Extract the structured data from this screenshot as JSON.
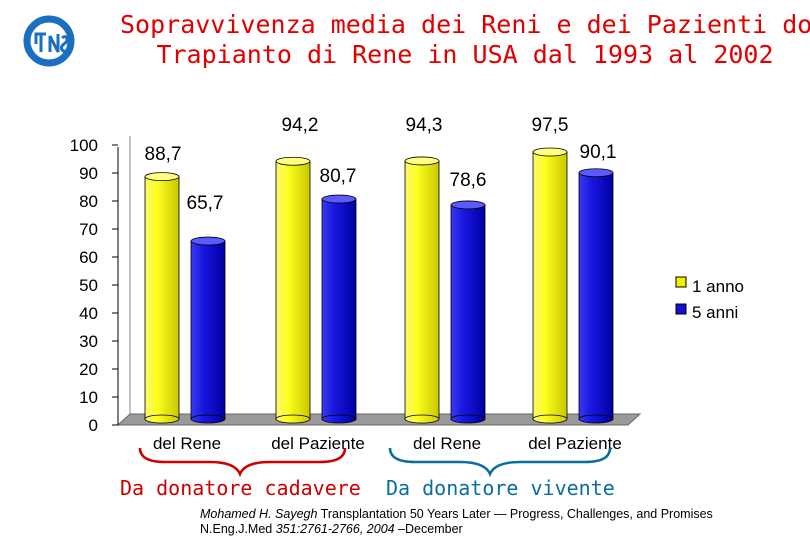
{
  "title": {
    "line1": "Sopravvivenza media dei Reni e dei Pazienti dopo",
    "line2": "Trapianto di Rene in USA dal 1993 al 2002"
  },
  "logo": {
    "icon": "tn-logo-icon",
    "color": "#1a6fc0"
  },
  "chart_data": {
    "type": "bar",
    "categories": [
      "del Rene",
      "del Paziente",
      "del Rene",
      "del Paziente"
    ],
    "series": [
      {
        "name": "1 anno",
        "values": [
          88.7,
          94.2,
          94.3,
          97.5
        ],
        "labels": [
          "88,7",
          "94,2",
          "94,3",
          "97,5"
        ],
        "color": "#f0f000"
      },
      {
        "name": "5 anni",
        "values": [
          65.7,
          80.7,
          78.6,
          90.1
        ],
        "labels": [
          "65,7",
          "80,7",
          "78,6",
          "90,1"
        ],
        "color": "#1010d0"
      }
    ],
    "y_ticks": [
      "0",
      "10",
      "20",
      "30",
      "40",
      "50",
      "60",
      "70",
      "80",
      "90",
      "100"
    ],
    "ylim": [
      0,
      100
    ],
    "grid": false,
    "legend_position": "right",
    "groups": [
      {
        "label": "Da donatore cadavere",
        "color": "#cc0000"
      },
      {
        "label": "Da donatore vivente",
        "color": "#0b6e9e"
      }
    ]
  },
  "citation": {
    "author": "Mohamed H. Sayegh",
    "title_text": " Transplantation 50 Years Later — Progress, Challenges, and Promises",
    "journal": "N.Eng.J.Med ",
    "ref": "351:2761-2766, 2004",
    "date": " –December"
  }
}
